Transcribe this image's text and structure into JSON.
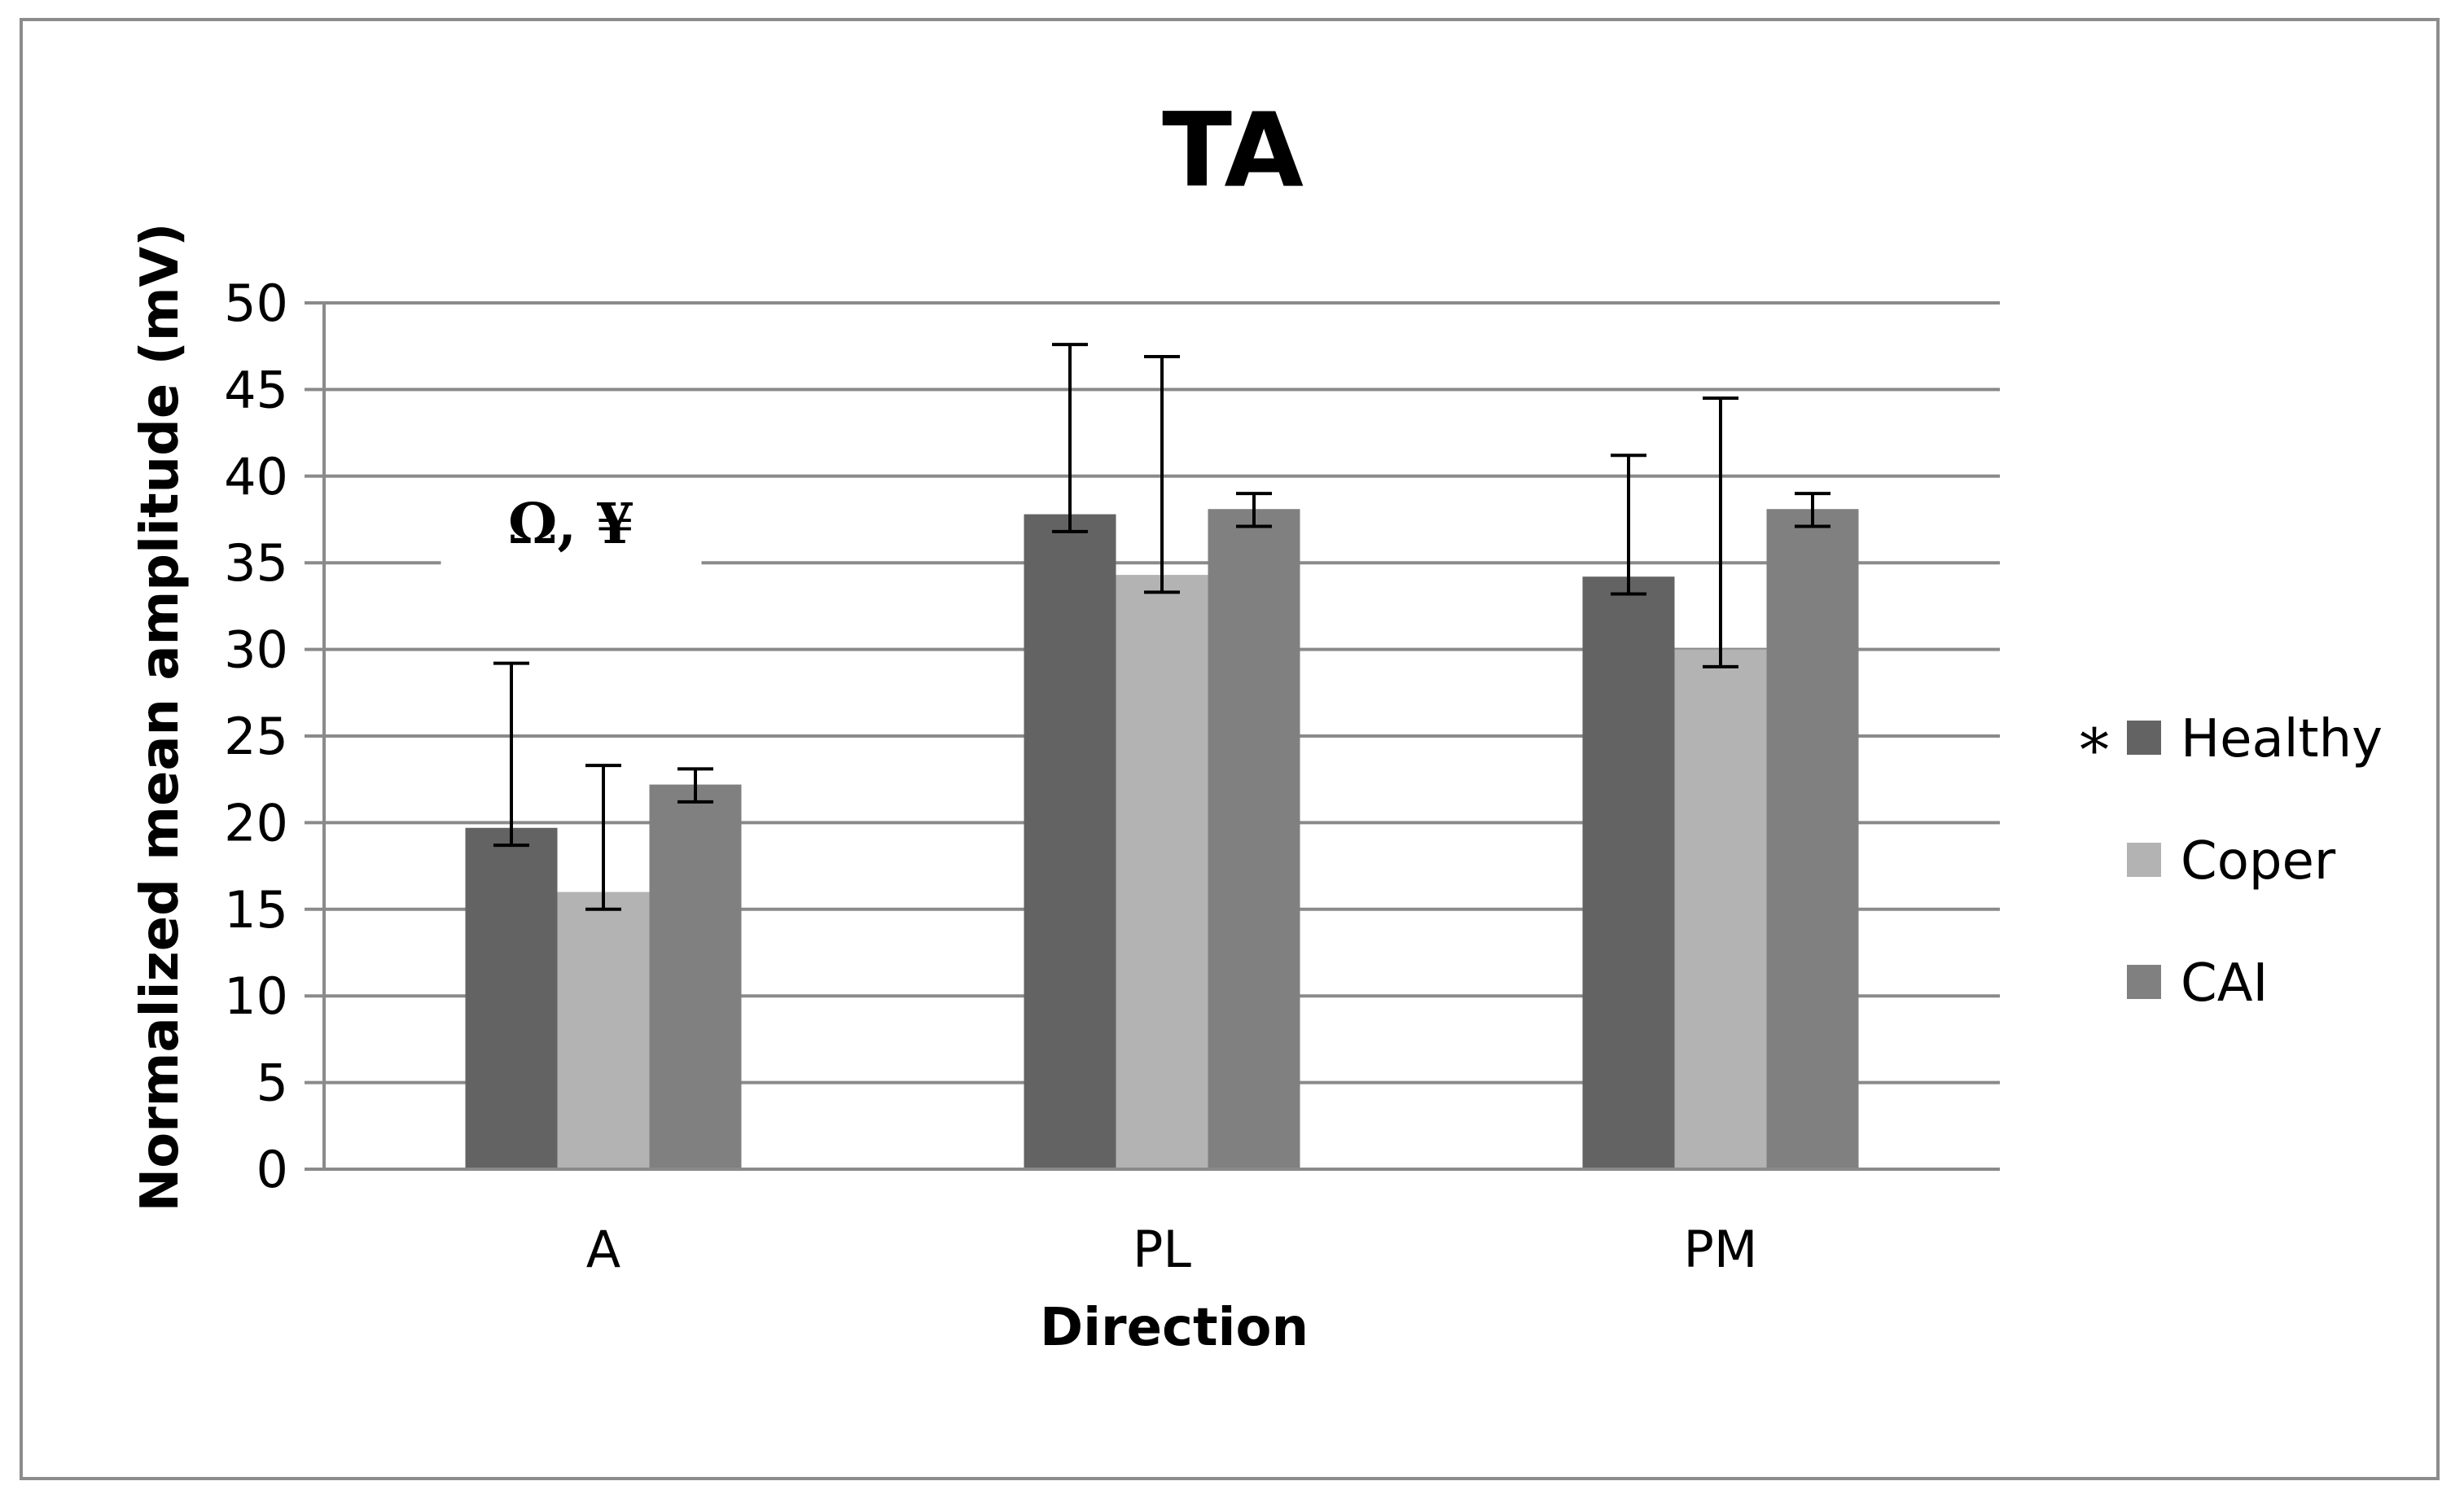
{
  "chart_data": {
    "type": "bar",
    "title": "TA",
    "xlabel": "Direction",
    "ylabel": "Normalized mean amplitude (mV)",
    "ylim": [
      0,
      50
    ],
    "yticks": [
      0,
      5,
      10,
      15,
      20,
      25,
      30,
      35,
      40,
      45,
      50
    ],
    "ytick_labels": [
      "0",
      "5",
      "10",
      "15",
      "20",
      "25",
      "30",
      "35",
      "40",
      "45",
      "50"
    ],
    "grid": true,
    "legend_position": "right",
    "categories": [
      "A",
      "PL",
      "PM"
    ],
    "series": [
      {
        "name": "Healthy",
        "color": "#636363",
        "values": [
          19.7,
          37.8,
          34.2
        ],
        "error_upper": [
          29.2,
          47.6,
          41.2
        ],
        "error_lower": [
          18.7,
          36.8,
          33.2
        ]
      },
      {
        "name": "Coper",
        "color": "#b3b3b3",
        "values": [
          16.0,
          34.3,
          30.0
        ],
        "error_upper": [
          23.3,
          46.9,
          44.5
        ],
        "error_lower": [
          15.0,
          33.3,
          29.0
        ]
      },
      {
        "name": "CAI",
        "color": "#808080",
        "values": [
          22.2,
          38.1,
          38.1
        ],
        "error_upper": [
          23.1,
          39.0,
          39.0
        ],
        "error_lower": [
          21.2,
          37.1,
          37.1
        ]
      }
    ],
    "annotations": [
      {
        "text": "Ω, ¥",
        "category": "A",
        "near_value": 36.8
      }
    ],
    "legend_markers": [
      {
        "text": "*",
        "series": "Healthy"
      }
    ]
  }
}
